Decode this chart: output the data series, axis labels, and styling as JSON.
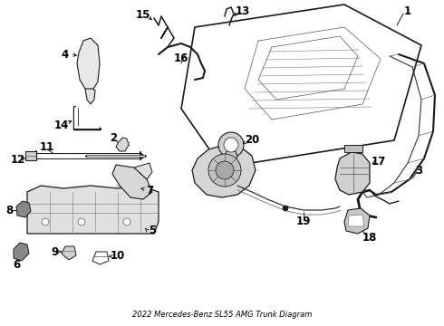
{
  "title": "2022 Mercedes-Benz SL55 AMG Trunk Diagram",
  "bg_color": "#ffffff",
  "line_color": "#1a1a1a",
  "font_size": 8.5
}
